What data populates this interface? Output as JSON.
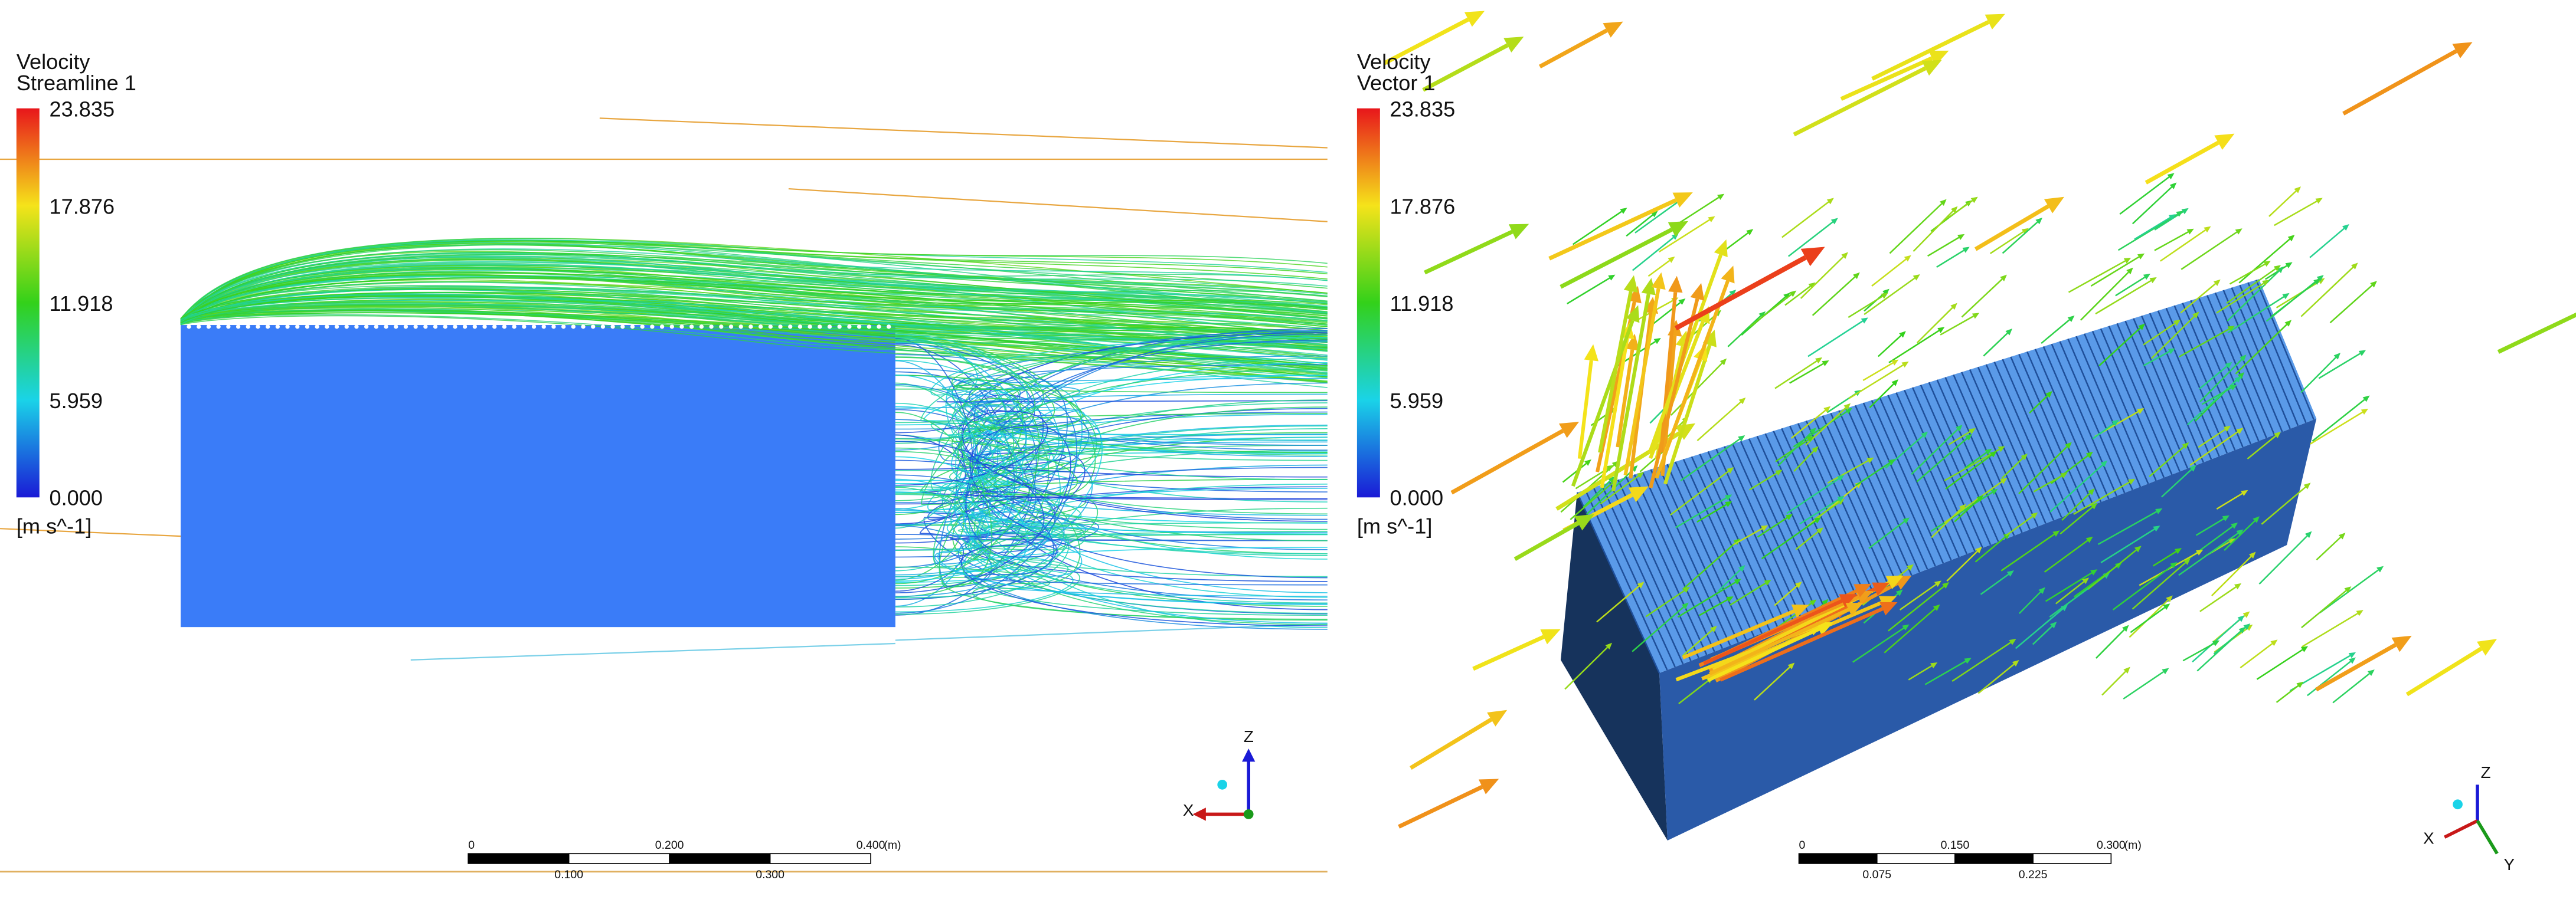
{
  "left_panel": {
    "legend": {
      "title": "Velocity",
      "subtitle": "Streamline 1",
      "ticks": [
        "23.835",
        "17.876",
        "11.918",
        "5.959",
        "0.000"
      ],
      "unit": "[m s^-1]"
    },
    "scale_bar": {
      "top_labels": [
        "0",
        "0.200",
        "0.400"
      ],
      "unit": "(m)",
      "bottom_labels": [
        "0.100",
        "0.300"
      ]
    },
    "axes": {
      "vertical": "Z",
      "horizontal": "X"
    }
  },
  "right_panel": {
    "legend": {
      "title": "Velocity",
      "subtitle": "Vector 1",
      "ticks": [
        "23.835",
        "17.876",
        "11.918",
        "5.959",
        "0.000"
      ],
      "unit": "[m s^-1]"
    },
    "scale_bar": {
      "top_labels": [
        "0",
        "0.150",
        "0.300"
      ],
      "unit": "(m)",
      "bottom_labels": [
        "0.075",
        "0.225"
      ]
    },
    "axes": {
      "vertical": "Z",
      "left": "X",
      "right": "Y"
    }
  }
}
